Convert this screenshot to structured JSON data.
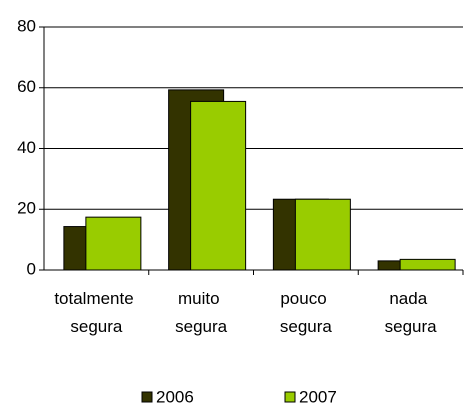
{
  "chart_data": {
    "type": "bar",
    "categories": [
      "totalmente segura",
      "muito segura",
      "pouco segura",
      "nada segura"
    ],
    "series": [
      {
        "name": "2006",
        "color": "#333300",
        "values": [
          14.3,
          59.3,
          23.3,
          3.0
        ]
      },
      {
        "name": "2007",
        "color": "#99cc00",
        "values": [
          17.4,
          55.5,
          23.3,
          3.5
        ]
      }
    ],
    "ylim": [
      0,
      80
    ],
    "yticks": [
      0,
      20,
      40,
      60,
      80
    ],
    "grid": true,
    "legend": "bottom"
  }
}
